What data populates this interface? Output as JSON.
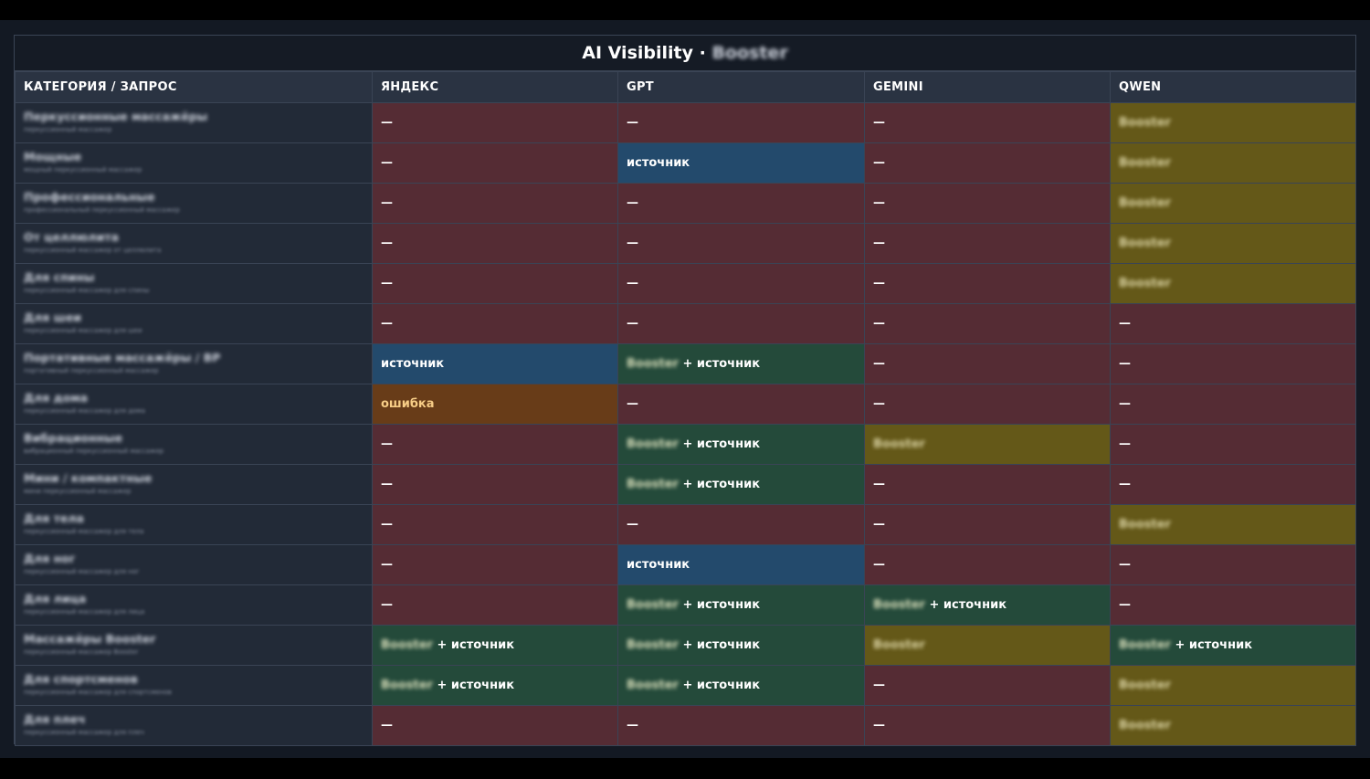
{
  "title_prefix": "AI Visibility · ",
  "title_brand": "Booster",
  "columns": [
    "КАТЕГОРИЯ / ЗАПРОС",
    "ЯНДЕКС",
    "GPT",
    "GEMINI",
    "QWEN"
  ],
  "labels": {
    "none": "—",
    "source": "источник",
    "both_suffix": " + источник",
    "error": "ошибка",
    "brand": "Booster"
  },
  "colors": {
    "none": "#552c34",
    "source": "#234a6c",
    "both": "#244a3a",
    "brand": "#645818",
    "error": "#683c18"
  },
  "rows": [
    {
      "name": "Перкуссионные массажёры",
      "sub": "перкуссионный массажер",
      "cells": [
        "none",
        "none",
        "none",
        "brand"
      ]
    },
    {
      "name": "Мощные",
      "sub": "мощный перкуссионный массажер",
      "cells": [
        "none",
        "source",
        "none",
        "brand"
      ]
    },
    {
      "name": "Профессиональные",
      "sub": "профессиональный перкуссионный массажер",
      "cells": [
        "none",
        "none",
        "none",
        "brand"
      ]
    },
    {
      "name": "От целлюлита",
      "sub": "перкуссионный массажер от целлюлита",
      "cells": [
        "none",
        "none",
        "none",
        "brand"
      ]
    },
    {
      "name": "Для спины",
      "sub": "перкуссионный массажер для спины",
      "cells": [
        "none",
        "none",
        "none",
        "brand"
      ]
    },
    {
      "name": "Для шеи",
      "sub": "перкуссионный массажер для шеи",
      "cells": [
        "none",
        "none",
        "none",
        "none"
      ]
    },
    {
      "name": "Портативные массажёры / ВР",
      "sub": "портативный перкуссионный массажер",
      "cells": [
        "source",
        "both",
        "none",
        "none"
      ]
    },
    {
      "name": "Для дома",
      "sub": "перкуссионный массажер для дома",
      "cells": [
        "error",
        "none",
        "none",
        "none"
      ]
    },
    {
      "name": "Вибрационные",
      "sub": "вибрационный перкуссионный массажер",
      "cells": [
        "none",
        "both",
        "brand",
        "none"
      ]
    },
    {
      "name": "Мини / компактные",
      "sub": "мини перкуссионный массажер",
      "cells": [
        "none",
        "both",
        "none",
        "none"
      ]
    },
    {
      "name": "Для тела",
      "sub": "перкуссионный массажер для тела",
      "cells": [
        "none",
        "none",
        "none",
        "brand"
      ]
    },
    {
      "name": "Для ног",
      "sub": "перкуссионный массажер для ног",
      "cells": [
        "none",
        "source",
        "none",
        "none"
      ]
    },
    {
      "name": "Для лица",
      "sub": "перкуссионный массажер для лица",
      "cells": [
        "none",
        "both",
        "both",
        "none"
      ]
    },
    {
      "name": "Массажёры Booster",
      "sub": "перкуссионный массажер Booster",
      "cells": [
        "both",
        "both",
        "brand",
        "both"
      ]
    },
    {
      "name": "Для спортсменов",
      "sub": "перкуссионный массажер для спортсменов",
      "cells": [
        "both",
        "both",
        "none",
        "brand"
      ]
    },
    {
      "name": "Для плеч",
      "sub": "перкуссионный массажер для плеч",
      "cells": [
        "none",
        "none",
        "none",
        "brand"
      ]
    }
  ]
}
